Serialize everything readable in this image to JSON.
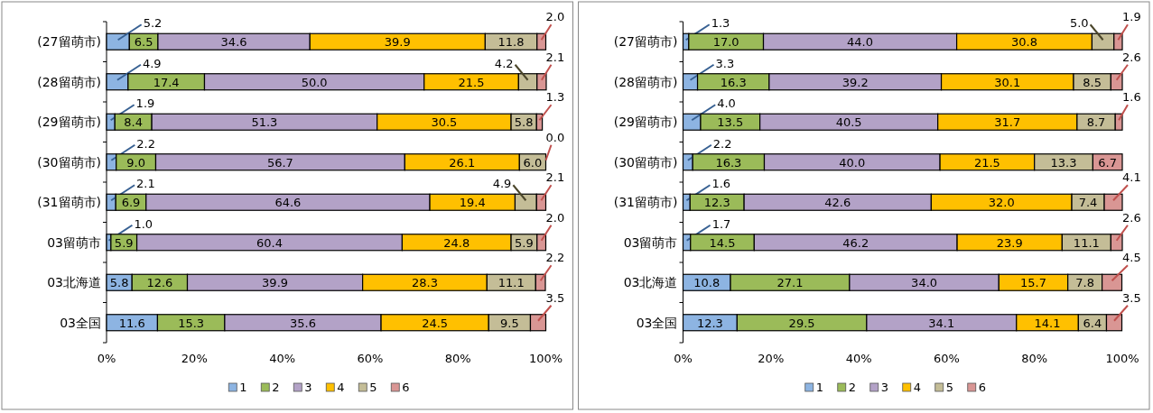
{
  "chart_data": [
    {
      "type": "bar",
      "orientation": "horizontal",
      "stacked": true,
      "legend": "bottom",
      "categories": [
        "(27留萌市)",
        "(28留萌市)",
        "(29留萌市)",
        "(30留萌市)",
        "(31留萌市)",
        "03留萌市",
        "03北海道",
        "03全国"
      ],
      "xlim": [
        0,
        100
      ],
      "xticks": [
        {
          "value": 0,
          "label": "0%"
        },
        {
          "value": 20,
          "label": "20%"
        },
        {
          "value": 40,
          "label": "40%"
        },
        {
          "value": 60,
          "label": "60%"
        },
        {
          "value": 80,
          "label": "80%"
        },
        {
          "value": 100,
          "label": "100%"
        }
      ],
      "series": [
        {
          "name": "1",
          "color": "#8db4e2",
          "values": [
            5.2,
            4.9,
            1.9,
            2.2,
            2.1,
            1.0,
            5.8,
            11.6
          ],
          "value_labels": [
            "5.2",
            "4.9",
            "1.9",
            "2.2",
            "2.1",
            "1.0",
            "5.8",
            "11.6"
          ]
        },
        {
          "name": "2",
          "color": "#9bbb59",
          "values": [
            6.5,
            17.4,
            8.4,
            9.0,
            6.9,
            5.9,
            12.6,
            15.3
          ],
          "value_labels": [
            "6.5",
            "17.4",
            "8.4",
            "9.0",
            "6.9",
            "5.9",
            "12.6",
            "15.3"
          ]
        },
        {
          "name": "3",
          "color": "#b3a2c7",
          "values": [
            34.6,
            50.0,
            51.3,
            56.7,
            64.6,
            60.4,
            39.9,
            35.6
          ],
          "value_labels": [
            "34.6",
            "50.0",
            "51.3",
            "56.7",
            "64.6",
            "60.4",
            "39.9",
            "35.6"
          ]
        },
        {
          "name": "4",
          "color": "#ffc000",
          "values": [
            39.9,
            21.5,
            30.5,
            26.1,
            19.4,
            24.8,
            28.3,
            24.5
          ],
          "value_labels": [
            "39.9",
            "21.5",
            "30.5",
            "26.1",
            "19.4",
            "24.8",
            "28.3",
            "24.5"
          ]
        },
        {
          "name": "5",
          "color": "#c4bd97",
          "values": [
            11.8,
            4.2,
            5.8,
            6.0,
            4.9,
            5.9,
            11.1,
            9.5
          ],
          "value_labels": [
            "11.8",
            "4.2",
            "5.8",
            "6.0",
            "4.9",
            "5.9",
            "11.1",
            "9.5"
          ]
        },
        {
          "name": "6",
          "color": "#d99694",
          "values": [
            2.0,
            2.1,
            1.3,
            0.0,
            2.1,
            2.0,
            2.2,
            3.5
          ],
          "value_labels": [
            "2.0",
            "2.1",
            "1.3",
            "0.0",
            "2.1",
            "2.0",
            "2.2",
            "3.5"
          ]
        }
      ]
    },
    {
      "type": "bar",
      "orientation": "horizontal",
      "stacked": true,
      "legend": "bottom",
      "categories": [
        "(27留萌市)",
        "(28留萌市)",
        "(29留萌市)",
        "(30留萌市)",
        "(31留萌市)",
        "03留萌市",
        "03北海道",
        "03全国"
      ],
      "xlim": [
        0,
        100
      ],
      "xticks": [
        {
          "value": 0,
          "label": "0%"
        },
        {
          "value": 20,
          "label": "20%"
        },
        {
          "value": 40,
          "label": "40%"
        },
        {
          "value": 60,
          "label": "60%"
        },
        {
          "value": 80,
          "label": "80%"
        },
        {
          "value": 100,
          "label": "100%"
        }
      ],
      "series": [
        {
          "name": "1",
          "color": "#8db4e2",
          "values": [
            1.3,
            3.3,
            4.0,
            2.2,
            1.6,
            1.7,
            10.8,
            12.3
          ],
          "value_labels": [
            "1.3",
            "3.3",
            "4.0",
            "2.2",
            "1.6",
            "1.7",
            "10.8",
            "12.3"
          ]
        },
        {
          "name": "2",
          "color": "#9bbb59",
          "values": [
            17.0,
            16.3,
            13.5,
            16.3,
            12.3,
            14.5,
            27.1,
            29.5
          ],
          "value_labels": [
            "17.0",
            "16.3",
            "13.5",
            "16.3",
            "12.3",
            "14.5",
            "27.1",
            "29.5"
          ]
        },
        {
          "name": "3",
          "color": "#b3a2c7",
          "values": [
            44.0,
            39.2,
            40.5,
            40.0,
            42.6,
            46.2,
            34.0,
            34.1
          ],
          "value_labels": [
            "44.0",
            "39.2",
            "40.5",
            "40.0",
            "42.6",
            "46.2",
            "34.0",
            "34.1"
          ]
        },
        {
          "name": "4",
          "color": "#ffc000",
          "values": [
            30.8,
            30.1,
            31.7,
            21.5,
            32.0,
            23.9,
            15.7,
            14.1
          ],
          "value_labels": [
            "30.8",
            "30.1",
            "31.7",
            "21.5",
            "32.0",
            "23.9",
            "15.7",
            "14.1"
          ]
        },
        {
          "name": "5",
          "color": "#c4bd97",
          "values": [
            5.0,
            8.5,
            8.7,
            13.3,
            7.4,
            11.1,
            7.8,
            6.4
          ],
          "value_labels": [
            "5.0",
            "8.5",
            "8.7",
            "13.3",
            "7.4",
            "11.1",
            "7.8",
            "6.4"
          ]
        },
        {
          "name": "6",
          "color": "#d99694",
          "values": [
            1.9,
            2.6,
            1.6,
            6.7,
            4.1,
            2.6,
            4.5,
            3.5
          ],
          "value_labels": [
            "1.9",
            "2.6",
            "1.6",
            "6.7",
            "4.1",
            "2.6",
            "4.5",
            "3.5"
          ]
        }
      ]
    }
  ]
}
